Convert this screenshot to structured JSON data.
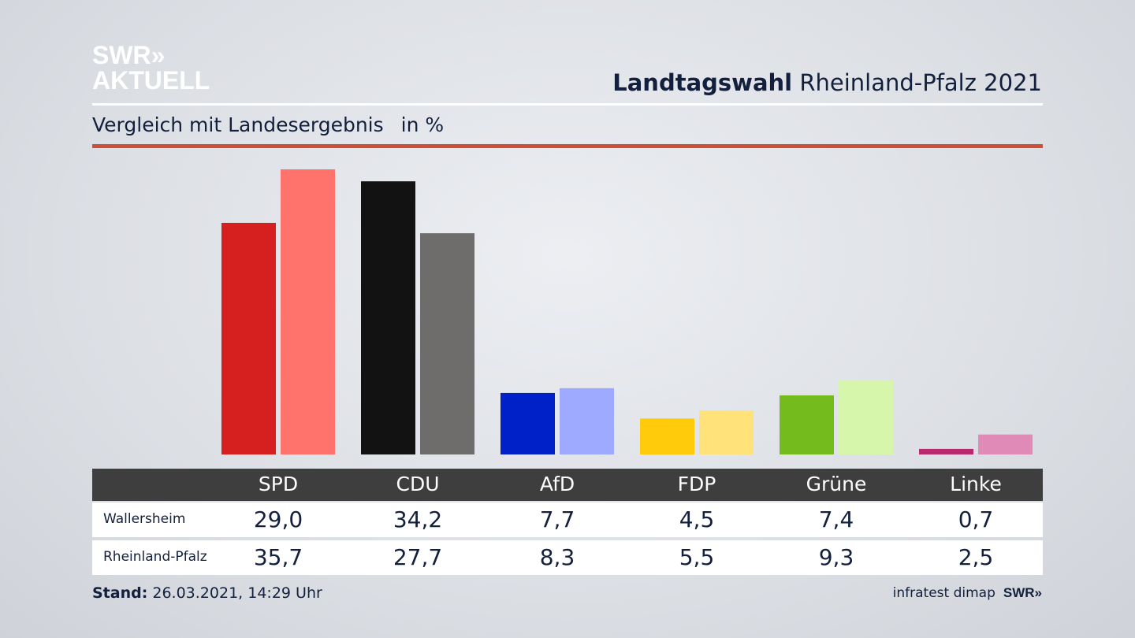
{
  "logo": {
    "line1": "SWR»",
    "line2": "AKTUELL"
  },
  "header": {
    "title_bold": "Landtagswahl",
    "title_rest": "Rheinland-Pfalz 2021"
  },
  "subtitle": {
    "text": "Vergleich mit Landesergebnis",
    "unit": "in %"
  },
  "chart_data": {
    "type": "bar",
    "title": "Landtagswahl Rheinland-Pfalz 2021 – Vergleich mit Landesergebnis",
    "ylabel": "in %",
    "ylim": [
      0,
      36
    ],
    "categories": [
      "SPD",
      "CDU",
      "AfD",
      "FDP",
      "Grüne",
      "Linke"
    ],
    "series": [
      {
        "name": "Wallersheim",
        "values": [
          29.0,
          34.2,
          7.7,
          4.5,
          7.4,
          0.7
        ],
        "labels": [
          "29,0",
          "34,2",
          "7,7",
          "4,5",
          "7,4",
          "0,7"
        ],
        "colors": [
          "#d61f1f",
          "#121212",
          "#0020c8",
          "#ffcb0a",
          "#74bb1e",
          "#b8296e"
        ]
      },
      {
        "name": "Rheinland-Pfalz",
        "values": [
          35.7,
          27.7,
          8.3,
          5.5,
          9.3,
          2.5
        ],
        "labels": [
          "35,7",
          "27,7",
          "8,3",
          "5,5",
          "9,3",
          "2,5"
        ],
        "colors": [
          "#ff736c",
          "#6e6d6c",
          "#9eaaff",
          "#ffe27a",
          "#d6f7ab",
          "#e08ab8"
        ]
      }
    ]
  },
  "footer": {
    "stand_label": "Stand:",
    "stand_value": "26.03.2021, 14:29 Uhr",
    "source": "infratest dimap",
    "brand": "SWR»"
  }
}
